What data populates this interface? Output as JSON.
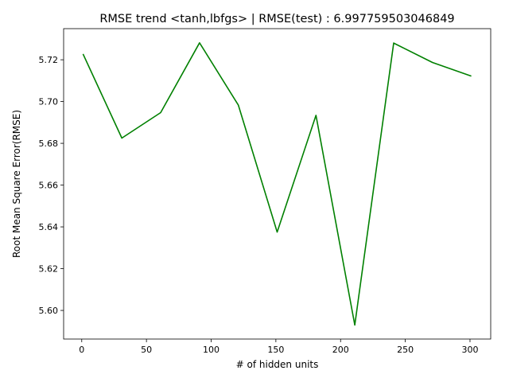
{
  "chart_data": {
    "type": "line",
    "title": "RMSE trend <tanh,lbfgs> | RMSE(test) : 6.997759503046849",
    "xlabel": "# of hidden units",
    "ylabel": "Root Mean Square Error(RMSE)",
    "x": [
      1,
      31,
      61,
      91,
      121,
      151,
      181,
      211,
      241,
      271,
      301
    ],
    "series": [
      {
        "color": "#008000",
        "values": [
          5.7228,
          5.6825,
          5.6947,
          5.7281,
          5.6983,
          5.6375,
          5.6934,
          5.593,
          5.728,
          5.7187,
          5.7122
        ]
      }
    ],
    "xlim": [
      -14,
      316
    ],
    "ylim": [
      5.5863,
      5.7349
    ],
    "xticks": [
      0,
      50,
      100,
      150,
      200,
      250,
      300
    ],
    "xtick_labels": [
      "0",
      "50",
      "100",
      "150",
      "200",
      "250",
      "300"
    ],
    "yticks": [
      5.6,
      5.62,
      5.64,
      5.66,
      5.68,
      5.7,
      5.72
    ],
    "ytick_labels": [
      "5.60",
      "5.62",
      "5.64",
      "5.66",
      "5.68",
      "5.70",
      "5.72"
    ],
    "grid": false,
    "legend": "none"
  }
}
